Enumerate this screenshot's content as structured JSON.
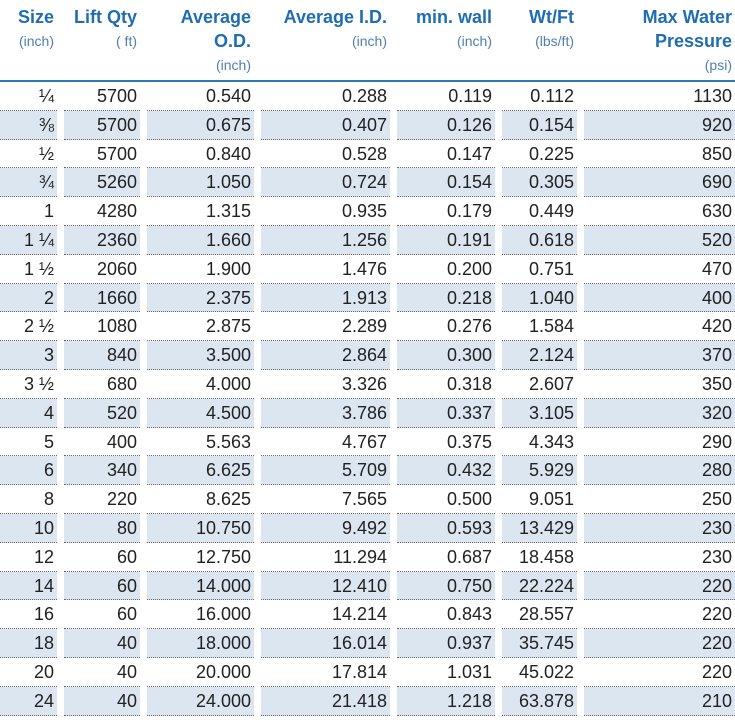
{
  "table": {
    "columns": [
      {
        "title": [
          "Size"
        ],
        "unit": "(inch)"
      },
      {
        "title": [
          "Lift Qty"
        ],
        "unit": "( ft)"
      },
      {
        "title": [
          "Average",
          "O.D."
        ],
        "unit": "(inch)"
      },
      {
        "title": [
          "Average I.D."
        ],
        "unit": "(inch)"
      },
      {
        "title": [
          "min. wall"
        ],
        "unit": "(inch)"
      },
      {
        "title": [
          "Wt/Ft"
        ],
        "unit": "(lbs/ft)"
      },
      {
        "title": [
          "Max Water",
          "Pressure"
        ],
        "unit": "(psi)"
      }
    ],
    "rows": [
      [
        "¼",
        "5700",
        "0.540",
        "0.288",
        "0.119",
        "0.112",
        "1130"
      ],
      [
        "⅜",
        "5700",
        "0.675",
        "0.407",
        "0.126",
        "0.154",
        "920"
      ],
      [
        "½",
        "5700",
        "0.840",
        "0.528",
        "0.147",
        "0.225",
        "850"
      ],
      [
        "¾",
        "5260",
        "1.050",
        "0.724",
        "0.154",
        "0.305",
        "690"
      ],
      [
        "1",
        "4280",
        "1.315",
        "0.935",
        "0.179",
        "0.449",
        "630"
      ],
      [
        "1 ¼",
        "2360",
        "1.660",
        "1.256",
        "0.191",
        "0.618",
        "520"
      ],
      [
        "1 ½",
        "2060",
        "1.900",
        "1.476",
        "0.200",
        "0.751",
        "470"
      ],
      [
        "2",
        "1660",
        "2.375",
        "1.913",
        "0.218",
        "1.040",
        "400"
      ],
      [
        "2 ½",
        "1080",
        "2.875",
        "2.289",
        "0.276",
        "1.584",
        "420"
      ],
      [
        "3",
        "840",
        "3.500",
        "2.864",
        "0.300",
        "2.124",
        "370"
      ],
      [
        "3 ½",
        "680",
        "4.000",
        "3.326",
        "0.318",
        "2.607",
        "350"
      ],
      [
        "4",
        "520",
        "4.500",
        "3.786",
        "0.337",
        "3.105",
        "320"
      ],
      [
        "5",
        "400",
        "5.563",
        "4.767",
        "0.375",
        "4.343",
        "290"
      ],
      [
        "6",
        "340",
        "6.625",
        "5.709",
        "0.432",
        "5.929",
        "280"
      ],
      [
        "8",
        "220",
        "8.625",
        "7.565",
        "0.500",
        "9.051",
        "250"
      ],
      [
        "10",
        "80",
        "10.750",
        "9.492",
        "0.593",
        "13.429",
        "230"
      ],
      [
        "12",
        "60",
        "12.750",
        "11.294",
        "0.687",
        "18.458",
        "230"
      ],
      [
        "14",
        "60",
        "14.000",
        "12.410",
        "0.750",
        "22.224",
        "220"
      ],
      [
        "16",
        "60",
        "16.000",
        "14.214",
        "0.843",
        "28.557",
        "220"
      ],
      [
        "18",
        "40",
        "18.000",
        "16.014",
        "0.937",
        "35.745",
        "220"
      ],
      [
        "20",
        "40",
        "20.000",
        "17.814",
        "1.031",
        "45.022",
        "220"
      ],
      [
        "24",
        "40",
        "24.000",
        "21.418",
        "1.218",
        "63.878",
        "210"
      ]
    ]
  }
}
